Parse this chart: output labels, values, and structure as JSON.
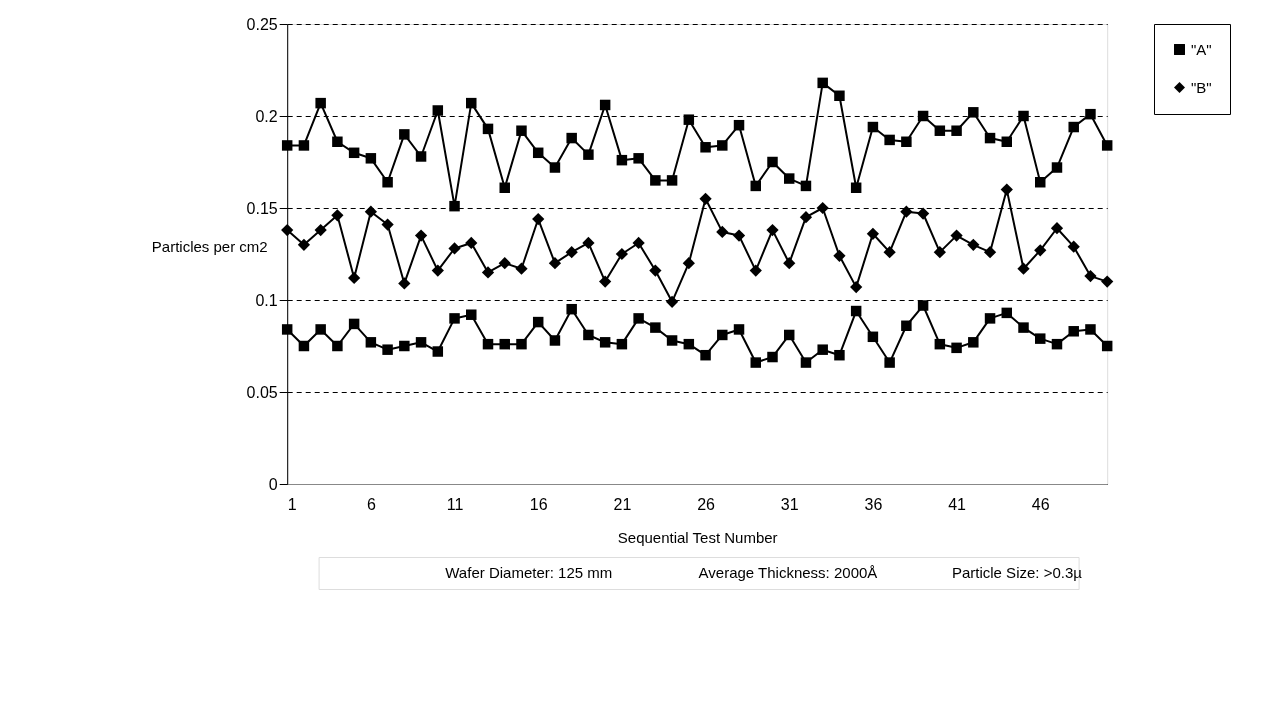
{
  "chart_data": {
    "type": "line",
    "xlabel": "Sequential Test Number",
    "ylabel": "Particles per cm2",
    "x": [
      1,
      2,
      3,
      4,
      5,
      6,
      7,
      8,
      9,
      10,
      11,
      12,
      13,
      14,
      15,
      16,
      17,
      18,
      19,
      20,
      21,
      22,
      23,
      24,
      25,
      26,
      27,
      28,
      29,
      30,
      31,
      32,
      33,
      34,
      35,
      36,
      37,
      38,
      39,
      40,
      41,
      42,
      43,
      44,
      45,
      46,
      47,
      48,
      49,
      50
    ],
    "xlim": [
      1,
      50
    ],
    "xticks": [
      1,
      6,
      11,
      16,
      21,
      26,
      31,
      36,
      41,
      46
    ],
    "ylim": [
      0,
      0.25
    ],
    "yticks": [
      0,
      0.05,
      0.1,
      0.15,
      0.2,
      0.25
    ],
    "grid": "y",
    "legend": "right",
    "series": [
      {
        "name": "\"A\"",
        "color": "#000000",
        "marker": "square",
        "values": [
          0.184,
          0.184,
          0.207,
          0.186,
          0.18,
          0.177,
          0.164,
          0.19,
          0.178,
          0.203,
          0.151,
          0.207,
          0.193,
          0.161,
          0.192,
          0.18,
          0.172,
          0.188,
          0.179,
          0.206,
          0.176,
          0.177,
          0.165,
          0.165,
          0.198,
          0.183,
          0.184,
          0.195,
          0.162,
          0.175,
          0.166,
          0.162,
          0.218,
          0.211,
          0.161,
          0.194,
          0.187,
          0.186,
          0.2,
          0.192,
          0.192,
          0.202,
          0.188,
          0.186,
          0.2,
          0.164,
          0.172,
          0.194,
          0.201,
          0.184
        ]
      },
      {
        "name": "\"B\"",
        "color": "#000000",
        "marker": "diamond",
        "values": [
          0.138,
          0.13,
          0.138,
          0.146,
          0.112,
          0.148,
          0.141,
          0.109,
          0.135,
          0.116,
          0.128,
          0.131,
          0.115,
          0.12,
          0.117,
          0.144,
          0.12,
          0.126,
          0.131,
          0.11,
          0.125,
          0.131,
          0.116,
          0.099,
          0.12,
          0.155,
          0.137,
          0.135,
          0.116,
          0.138,
          0.12,
          0.145,
          0.15,
          0.124,
          0.107,
          0.136,
          0.126,
          0.148,
          0.147,
          0.126,
          0.135,
          0.13,
          0.126,
          0.16,
          0.117,
          0.127,
          0.139,
          0.129,
          0.113,
          0.11
        ]
      },
      {
        "color": "#000000",
        "marker": "square",
        "values": [
          0.084,
          0.075,
          0.084,
          0.075,
          0.087,
          0.077,
          0.073,
          0.075,
          0.077,
          0.072,
          0.09,
          0.092,
          0.076,
          0.076,
          0.076,
          0.088,
          0.078,
          0.095,
          0.081,
          0.077,
          0.076,
          0.09,
          0.085,
          0.078,
          0.076,
          0.07,
          0.081,
          0.084,
          0.066,
          0.069,
          0.081,
          0.066,
          0.073,
          0.07,
          0.094,
          0.08,
          0.066,
          0.086,
          0.097,
          0.076,
          0.074,
          0.077,
          0.09,
          0.093,
          0.085,
          0.079,
          0.076,
          0.083,
          0.084,
          0.075
        ]
      }
    ],
    "annotations": [
      "Wafer Diameter: 125 mm",
      "Average Thickness: 2000Å",
      "Particle Size: >0.3µ"
    ]
  }
}
